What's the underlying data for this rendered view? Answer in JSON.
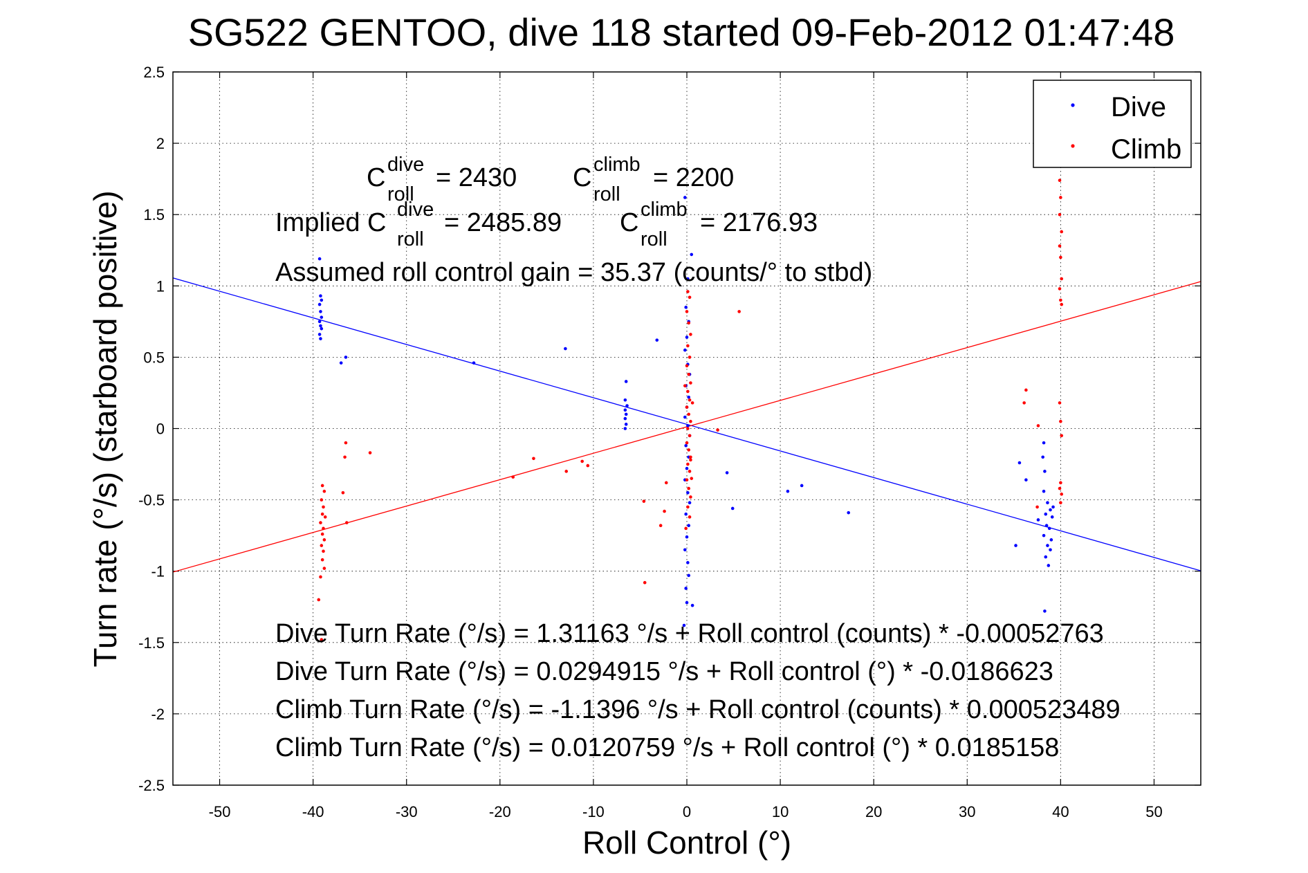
{
  "chart_data": {
    "type": "scatter",
    "title": "SG522 GENTOO, dive 118 started 09-Feb-2012 01:47:48",
    "xlabel": "Roll Control (°)",
    "ylabel": "Turn rate (°/s)  (starboard positive)",
    "xlim": [
      -55,
      55
    ],
    "ylim": [
      -2.5,
      2.5
    ],
    "xticks": [
      -50,
      -40,
      -30,
      -20,
      -10,
      0,
      10,
      20,
      30,
      40,
      50
    ],
    "yticks": [
      -2.5,
      -2,
      -1.5,
      -1,
      -0.5,
      0,
      0.5,
      1,
      1.5,
      2,
      2.5
    ],
    "xtick_labels": [
      "-50",
      "-40",
      "-30",
      "-20",
      "-10",
      "0",
      "10",
      "20",
      "30",
      "40",
      "50"
    ],
    "ytick_labels": [
      "-2.5",
      "-2",
      "-1.5",
      "-1",
      "-0.5",
      "0",
      "0.5",
      "1",
      "1.5",
      "2",
      "2.5"
    ],
    "grid": true,
    "legend_position": "top-right",
    "colors": {
      "dive": "#0000ff",
      "climb": "#ff0000"
    },
    "series": [
      {
        "name": "Dive",
        "color": "#0000ff",
        "points": [
          [
            -39.3,
            1.19
          ],
          [
            -39.2,
            0.93
          ],
          [
            -39.1,
            0.9
          ],
          [
            -39.3,
            0.87
          ],
          [
            -39.2,
            0.82
          ],
          [
            -39.1,
            0.78
          ],
          [
            -39.3,
            0.75
          ],
          [
            -39.2,
            0.72
          ],
          [
            -39.1,
            0.7
          ],
          [
            -39.3,
            0.66
          ],
          [
            -39.2,
            0.63
          ],
          [
            -36.5,
            0.5
          ],
          [
            -37.0,
            0.46
          ],
          [
            -22.8,
            0.46
          ],
          [
            -13.0,
            0.56
          ],
          [
            -3.2,
            0.62
          ],
          [
            -6.5,
            0.33
          ],
          [
            -6.6,
            0.2
          ],
          [
            -6.4,
            0.16
          ],
          [
            -6.6,
            0.13
          ],
          [
            -6.5,
            0.1
          ],
          [
            -6.6,
            0.07
          ],
          [
            -6.5,
            0.03
          ],
          [
            -6.6,
            0.0
          ],
          [
            -0.2,
            1.62
          ],
          [
            0.5,
            1.22
          ],
          [
            0.1,
            1.05
          ],
          [
            -0.1,
            0.85
          ],
          [
            0.2,
            0.75
          ],
          [
            0.0,
            0.64
          ],
          [
            -0.2,
            0.55
          ],
          [
            0.1,
            0.45
          ],
          [
            0.3,
            0.38
          ],
          [
            -0.1,
            0.3
          ],
          [
            0.2,
            0.22
          ],
          [
            0.0,
            0.15
          ],
          [
            -0.2,
            0.08
          ],
          [
            0.1,
            0.02
          ],
          [
            0.3,
            -0.05
          ],
          [
            -0.1,
            -0.12
          ],
          [
            0.2,
            -0.2
          ],
          [
            0.0,
            -0.28
          ],
          [
            -0.2,
            -0.36
          ],
          [
            0.1,
            -0.45
          ],
          [
            0.3,
            -0.52
          ],
          [
            -0.1,
            -0.6
          ],
          [
            0.2,
            -0.68
          ],
          [
            0.0,
            -0.76
          ],
          [
            -0.2,
            -0.85
          ],
          [
            0.1,
            -0.94
          ],
          [
            0.2,
            -1.03
          ],
          [
            -0.1,
            -1.12
          ],
          [
            0.0,
            -1.22
          ],
          [
            -0.3,
            -1.38
          ],
          [
            0.6,
            -1.24
          ],
          [
            4.3,
            -0.31
          ],
          [
            4.9,
            -0.56
          ],
          [
            10.8,
            -0.44
          ],
          [
            12.3,
            -0.4
          ],
          [
            17.3,
            -0.59
          ],
          [
            35.2,
            -0.82
          ],
          [
            35.6,
            -0.24
          ],
          [
            36.3,
            -0.36
          ],
          [
            37.6,
            -0.64
          ],
          [
            38.1,
            -0.2
          ],
          [
            38.3,
            -0.3
          ],
          [
            38.2,
            -0.44
          ],
          [
            38.4,
            -0.6
          ],
          [
            38.5,
            -0.68
          ],
          [
            38.2,
            -0.75
          ],
          [
            38.6,
            -0.82
          ],
          [
            38.4,
            -0.9
          ],
          [
            38.7,
            -0.96
          ],
          [
            38.9,
            -0.57
          ],
          [
            39.1,
            -0.62
          ],
          [
            38.8,
            -0.7
          ],
          [
            39.0,
            -0.78
          ],
          [
            38.9,
            -0.85
          ],
          [
            39.2,
            -0.55
          ],
          [
            38.6,
            -0.52
          ],
          [
            38.3,
            -1.28
          ],
          [
            38.2,
            -0.1
          ]
        ]
      },
      {
        "name": "Climb",
        "color": "#ff0000",
        "points": [
          [
            -39.0,
            -0.4
          ],
          [
            -38.8,
            -0.44
          ],
          [
            -39.1,
            -0.5
          ],
          [
            -38.9,
            -0.55
          ],
          [
            -39.0,
            -0.6
          ],
          [
            -38.7,
            -0.62
          ],
          [
            -39.2,
            -0.66
          ],
          [
            -38.9,
            -0.7
          ],
          [
            -39.0,
            -0.74
          ],
          [
            -38.8,
            -0.78
          ],
          [
            -39.1,
            -0.82
          ],
          [
            -38.9,
            -0.86
          ],
          [
            -39.0,
            -0.92
          ],
          [
            -38.8,
            -0.98
          ],
          [
            -39.2,
            -1.04
          ],
          [
            -39.4,
            -1.2
          ],
          [
            -39.1,
            -1.48
          ],
          [
            -36.5,
            -0.1
          ],
          [
            -36.6,
            -0.2
          ],
          [
            -36.8,
            -0.45
          ],
          [
            -36.4,
            -0.66
          ],
          [
            -33.9,
            -0.17
          ],
          [
            -18.6,
            -0.34
          ],
          [
            -16.4,
            -0.21
          ],
          [
            -12.9,
            -0.3
          ],
          [
            -11.2,
            -0.23
          ],
          [
            -10.6,
            -0.26
          ],
          [
            -4.6,
            -0.51
          ],
          [
            -2.8,
            -0.68
          ],
          [
            -2.4,
            -0.58
          ],
          [
            -4.5,
            -1.08
          ],
          [
            -2.2,
            -0.38
          ],
          [
            0.1,
            0.96
          ],
          [
            0.3,
            0.92
          ],
          [
            0.0,
            0.82
          ],
          [
            0.2,
            0.74
          ],
          [
            0.4,
            0.66
          ],
          [
            0.1,
            0.58
          ],
          [
            0.3,
            0.5
          ],
          [
            0.0,
            0.44
          ],
          [
            0.2,
            0.38
          ],
          [
            0.4,
            0.32
          ],
          [
            0.1,
            0.26
          ],
          [
            0.3,
            0.2
          ],
          [
            0.0,
            0.15
          ],
          [
            0.2,
            0.1
          ],
          [
            0.4,
            0.05
          ],
          [
            0.1,
            0.0
          ],
          [
            0.3,
            -0.05
          ],
          [
            0.0,
            -0.1
          ],
          [
            0.2,
            -0.15
          ],
          [
            0.4,
            -0.2
          ],
          [
            0.1,
            -0.25
          ],
          [
            0.3,
            -0.3
          ],
          [
            0.0,
            -0.36
          ],
          [
            0.2,
            -0.42
          ],
          [
            0.4,
            -0.48
          ],
          [
            0.1,
            -0.55
          ],
          [
            0.3,
            -0.62
          ],
          [
            -0.1,
            -0.7
          ],
          [
            0.5,
            -0.35
          ],
          [
            0.4,
            -0.22
          ],
          [
            -0.2,
            0.3
          ],
          [
            0.6,
            0.18
          ],
          [
            3.3,
            -0.01
          ],
          [
            5.6,
            0.82
          ],
          [
            36.3,
            0.27
          ],
          [
            36.1,
            0.18
          ],
          [
            37.5,
            -0.55
          ],
          [
            37.6,
            0.02
          ],
          [
            39.9,
            1.74
          ],
          [
            40.0,
            1.62
          ],
          [
            39.9,
            1.5
          ],
          [
            40.1,
            1.38
          ],
          [
            39.9,
            1.28
          ],
          [
            40.0,
            1.2
          ],
          [
            40.1,
            1.05
          ],
          [
            39.9,
            0.98
          ],
          [
            40.0,
            0.9
          ],
          [
            40.1,
            0.87
          ],
          [
            39.9,
            0.18
          ],
          [
            40.0,
            0.05
          ],
          [
            40.1,
            -0.05
          ],
          [
            40.0,
            -0.38
          ],
          [
            39.9,
            -0.42
          ],
          [
            40.1,
            -0.46
          ],
          [
            40.0,
            -0.52
          ]
        ]
      }
    ],
    "fit_lines": [
      {
        "name": "Dive",
        "color": "#0000ff",
        "intercept": 0.0294915,
        "slope": -0.0186623
      },
      {
        "name": "Climb",
        "color": "#ff0000",
        "intercept": 0.0120759,
        "slope": 0.0185158
      }
    ],
    "annotations": {
      "c_roll_dive": {
        "base": "C",
        "sup": "dive",
        "sub": "roll",
        "value": "= 2430"
      },
      "c_roll_climb": {
        "base": "C",
        "sup": "climb",
        "sub": "roll",
        "value": "= 2200"
      },
      "implied_prefix": "Implied C",
      "implied_dive": {
        "sup": "dive",
        "sub": "roll",
        "value": "= 2485.89"
      },
      "implied_climb": {
        "base": "C",
        "sup": "climb",
        "sub": "roll",
        "value": "= 2176.93"
      },
      "gain_line": "Assumed roll control gain = 35.37 (counts/° to stbd)",
      "equations": [
        "Dive Turn Rate (°/s) = 1.31163 °/s + Roll control (counts) * -0.00052763",
        "Dive Turn Rate (°/s) = 0.0294915 °/s + Roll control (°) * -0.0186623",
        "Climb Turn Rate (°/s) = -1.1396 °/s + Roll control (counts) * 0.000523489",
        "Climb Turn Rate (°/s) = 0.0120759 °/s + Roll control (°) * 0.0185158"
      ]
    }
  }
}
